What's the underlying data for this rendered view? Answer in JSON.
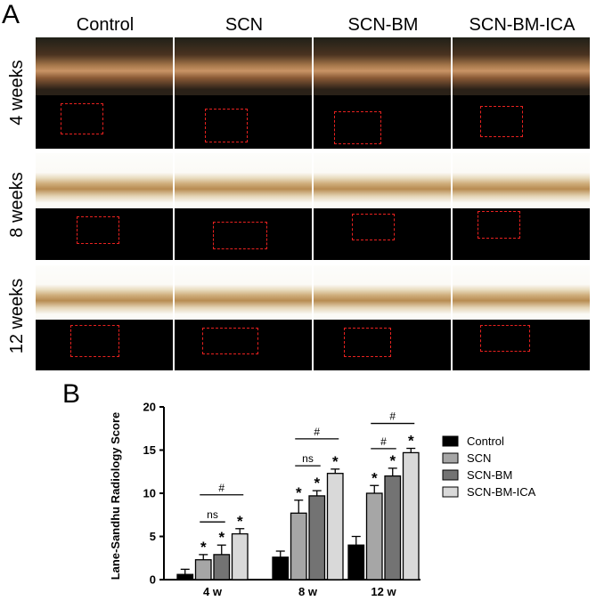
{
  "panel_a": {
    "letter": "A",
    "columns": [
      "Control",
      "SCN",
      "SCN-BM",
      "SCN-BM-ICA"
    ],
    "rows": [
      "4 weeks",
      "8 weeks",
      "12 weeks"
    ]
  },
  "panel_b": {
    "letter": "B"
  },
  "chart_data": {
    "type": "bar",
    "ylabel": "Lane-Sandhu Radiology Score",
    "xlabel": "",
    "ylim": [
      0,
      20
    ],
    "yticks": [
      0,
      5,
      10,
      15,
      20
    ],
    "categories": [
      "4 w",
      "8 w",
      "12 w"
    ],
    "legend_position": "right",
    "series": [
      {
        "name": "Control",
        "color": "#000000",
        "values": [
          0.6,
          2.6,
          4.0
        ],
        "errors": [
          0.6,
          0.7,
          1.0
        ]
      },
      {
        "name": "SCN",
        "color": "#a6a6a6",
        "values": [
          2.3,
          7.7,
          10.0
        ],
        "errors": [
          0.6,
          1.5,
          0.9
        ]
      },
      {
        "name": "SCN-BM",
        "color": "#737373",
        "values": [
          2.9,
          9.7,
          12.0
        ],
        "errors": [
          1.1,
          0.6,
          0.9
        ]
      },
      {
        "name": "SCN-BM-ICA",
        "color": "#d9d9d9",
        "values": [
          5.3,
          12.3,
          14.7
        ],
        "errors": [
          0.6,
          0.5,
          0.5
        ]
      }
    ],
    "significance_marker": "*",
    "comparisons": [
      {
        "group": "4 w",
        "label": "ns",
        "from": "SCN",
        "to": "SCN-BM"
      },
      {
        "group": "4 w",
        "label": "#",
        "from": "SCN",
        "to": "SCN-BM-ICA"
      },
      {
        "group": "8 w",
        "label": "ns",
        "from": "SCN",
        "to": "SCN-BM"
      },
      {
        "group": "8 w",
        "label": "#",
        "from": "SCN",
        "to": "SCN-BM-ICA"
      },
      {
        "group": "12 w",
        "label": "#",
        "from": "SCN",
        "to": "SCN-BM"
      },
      {
        "group": "12 w",
        "label": "#",
        "from": "SCN",
        "to": "SCN-BM-ICA"
      }
    ]
  }
}
